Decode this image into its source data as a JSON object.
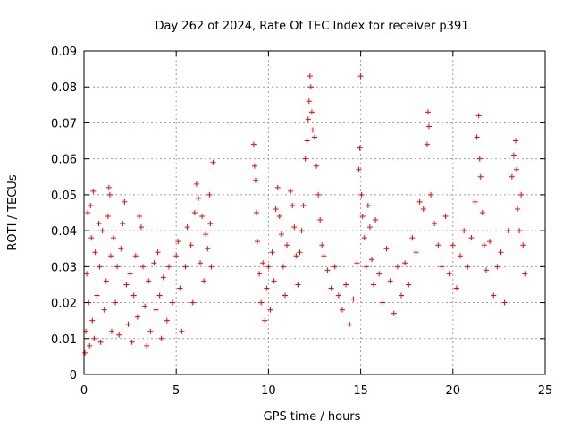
{
  "chart_data": {
    "type": "scatter",
    "title": "Day 262 of 2024, Rate Of TEC Index for receiver p391",
    "xlabel": "GPS time / hours",
    "ylabel": "ROTI / TECUs",
    "xlim": [
      0,
      25
    ],
    "ylim": [
      0,
      0.09
    ],
    "xticks": [
      0,
      5,
      10,
      15,
      20,
      25
    ],
    "xtick_labels": [
      "0",
      "5",
      "10",
      "15",
      "20",
      "25"
    ],
    "yticks": [
      0,
      0.01,
      0.02,
      0.03,
      0.04,
      0.05,
      0.06,
      0.07,
      0.08,
      0.09
    ],
    "ytick_labels": [
      "0",
      "0.01",
      "0.02",
      "0.03",
      "0.04",
      "0.05",
      "0.06",
      "0.07",
      "0.08",
      "0.09"
    ],
    "grid": true,
    "marker": "+",
    "color": "#ff0000",
    "series": [
      {
        "name": "ROTI",
        "points": [
          [
            0.05,
            0.006
          ],
          [
            0.1,
            0.012
          ],
          [
            0.15,
            0.028
          ],
          [
            0.2,
            0.045
          ],
          [
            0.25,
            0.02
          ],
          [
            0.3,
            0.008
          ],
          [
            0.35,
            0.047
          ],
          [
            0.4,
            0.038
          ],
          [
            0.45,
            0.015
          ],
          [
            0.5,
            0.051
          ],
          [
            0.55,
            0.01
          ],
          [
            0.6,
            0.034
          ],
          [
            0.7,
            0.022
          ],
          [
            0.8,
            0.042
          ],
          [
            0.85,
            0.03
          ],
          [
            0.9,
            0.009
          ],
          [
            1.0,
            0.04
          ],
          [
            1.1,
            0.018
          ],
          [
            1.2,
            0.026
          ],
          [
            1.3,
            0.044
          ],
          [
            1.35,
            0.052
          ],
          [
            1.4,
            0.05
          ],
          [
            1.45,
            0.033
          ],
          [
            1.5,
            0.012
          ],
          [
            1.6,
            0.038
          ],
          [
            1.7,
            0.02
          ],
          [
            1.8,
            0.03
          ],
          [
            1.9,
            0.011
          ],
          [
            2.0,
            0.035
          ],
          [
            2.1,
            0.042
          ],
          [
            2.2,
            0.048
          ],
          [
            2.3,
            0.025
          ],
          [
            2.4,
            0.014
          ],
          [
            2.5,
            0.028
          ],
          [
            2.6,
            0.009
          ],
          [
            2.7,
            0.022
          ],
          [
            2.8,
            0.033
          ],
          [
            2.9,
            0.016
          ],
          [
            3.0,
            0.044
          ],
          [
            3.1,
            0.041
          ],
          [
            3.2,
            0.03
          ],
          [
            3.3,
            0.019
          ],
          [
            3.4,
            0.008
          ],
          [
            3.5,
            0.026
          ],
          [
            3.6,
            0.012
          ],
          [
            3.8,
            0.031
          ],
          [
            3.9,
            0.018
          ],
          [
            4.0,
            0.034
          ],
          [
            4.1,
            0.022
          ],
          [
            4.2,
            0.01
          ],
          [
            4.3,
            0.027
          ],
          [
            4.5,
            0.015
          ],
          [
            4.6,
            0.03
          ],
          [
            4.8,
            0.02
          ],
          [
            5.0,
            0.033
          ],
          [
            5.1,
            0.037
          ],
          [
            5.2,
            0.024
          ],
          [
            5.3,
            0.012
          ],
          [
            5.5,
            0.03
          ],
          [
            5.6,
            0.041
          ],
          [
            5.8,
            0.036
          ],
          [
            5.9,
            0.02
          ],
          [
            6.0,
            0.045
          ],
          [
            6.1,
            0.053
          ],
          [
            6.2,
            0.049
          ],
          [
            6.3,
            0.031
          ],
          [
            6.4,
            0.044
          ],
          [
            6.5,
            0.026
          ],
          [
            6.6,
            0.039
          ],
          [
            6.7,
            0.035
          ],
          [
            6.8,
            0.05
          ],
          [
            6.85,
            0.042
          ],
          [
            6.9,
            0.03
          ],
          [
            7.0,
            0.059
          ],
          [
            9.2,
            0.064
          ],
          [
            9.25,
            0.058
          ],
          [
            9.3,
            0.054
          ],
          [
            9.35,
            0.045
          ],
          [
            9.4,
            0.037
          ],
          [
            9.5,
            0.028
          ],
          [
            9.6,
            0.02
          ],
          [
            9.7,
            0.031
          ],
          [
            9.8,
            0.015
          ],
          [
            9.9,
            0.024
          ],
          [
            10.0,
            0.03
          ],
          [
            10.1,
            0.018
          ],
          [
            10.2,
            0.034
          ],
          [
            10.3,
            0.026
          ],
          [
            10.4,
            0.046
          ],
          [
            10.5,
            0.052
          ],
          [
            10.6,
            0.044
          ],
          [
            10.7,
            0.039
          ],
          [
            10.8,
            0.03
          ],
          [
            10.9,
            0.022
          ],
          [
            11.0,
            0.036
          ],
          [
            11.2,
            0.051
          ],
          [
            11.3,
            0.047
          ],
          [
            11.4,
            0.041
          ],
          [
            11.5,
            0.033
          ],
          [
            11.6,
            0.025
          ],
          [
            11.7,
            0.034
          ],
          [
            11.8,
            0.04
          ],
          [
            11.9,
            0.047
          ],
          [
            12.0,
            0.06
          ],
          [
            12.1,
            0.065
          ],
          [
            12.15,
            0.071
          ],
          [
            12.2,
            0.076
          ],
          [
            12.25,
            0.083
          ],
          [
            12.3,
            0.08
          ],
          [
            12.35,
            0.073
          ],
          [
            12.4,
            0.068
          ],
          [
            12.5,
            0.066
          ],
          [
            12.6,
            0.058
          ],
          [
            12.7,
            0.05
          ],
          [
            12.8,
            0.043
          ],
          [
            12.9,
            0.036
          ],
          [
            13.0,
            0.033
          ],
          [
            13.2,
            0.029
          ],
          [
            13.4,
            0.024
          ],
          [
            13.6,
            0.03
          ],
          [
            13.8,
            0.022
          ],
          [
            14.0,
            0.018
          ],
          [
            14.2,
            0.025
          ],
          [
            14.4,
            0.014
          ],
          [
            14.6,
            0.021
          ],
          [
            14.8,
            0.031
          ],
          [
            14.9,
            0.057
          ],
          [
            14.95,
            0.063
          ],
          [
            15.0,
            0.083
          ],
          [
            15.05,
            0.05
          ],
          [
            15.1,
            0.044
          ],
          [
            15.2,
            0.038
          ],
          [
            15.3,
            0.03
          ],
          [
            15.4,
            0.047
          ],
          [
            15.5,
            0.041
          ],
          [
            15.6,
            0.032
          ],
          [
            15.7,
            0.025
          ],
          [
            15.8,
            0.043
          ],
          [
            16.0,
            0.028
          ],
          [
            16.2,
            0.02
          ],
          [
            16.4,
            0.035
          ],
          [
            16.6,
            0.026
          ],
          [
            16.8,
            0.017
          ],
          [
            17.0,
            0.03
          ],
          [
            17.2,
            0.022
          ],
          [
            17.4,
            0.031
          ],
          [
            17.6,
            0.025
          ],
          [
            17.8,
            0.038
          ],
          [
            18.0,
            0.034
          ],
          [
            18.2,
            0.048
          ],
          [
            18.4,
            0.046
          ],
          [
            18.6,
            0.064
          ],
          [
            18.65,
            0.073
          ],
          [
            18.7,
            0.069
          ],
          [
            18.8,
            0.05
          ],
          [
            19.0,
            0.042
          ],
          [
            19.2,
            0.036
          ],
          [
            19.4,
            0.03
          ],
          [
            19.6,
            0.044
          ],
          [
            19.8,
            0.028
          ],
          [
            20.0,
            0.036
          ],
          [
            20.2,
            0.024
          ],
          [
            20.4,
            0.033
          ],
          [
            20.6,
            0.04
          ],
          [
            20.8,
            0.03
          ],
          [
            21.0,
            0.038
          ],
          [
            21.2,
            0.048
          ],
          [
            21.3,
            0.066
          ],
          [
            21.4,
            0.072
          ],
          [
            21.45,
            0.06
          ],
          [
            21.5,
            0.055
          ],
          [
            21.6,
            0.045
          ],
          [
            21.7,
            0.036
          ],
          [
            21.8,
            0.029
          ],
          [
            22.0,
            0.037
          ],
          [
            22.2,
            0.022
          ],
          [
            22.4,
            0.03
          ],
          [
            22.6,
            0.034
          ],
          [
            22.8,
            0.02
          ],
          [
            23.0,
            0.04
          ],
          [
            23.2,
            0.055
          ],
          [
            23.3,
            0.061
          ],
          [
            23.4,
            0.065
          ],
          [
            23.45,
            0.057
          ],
          [
            23.5,
            0.046
          ],
          [
            23.6,
            0.04
          ],
          [
            23.7,
            0.05
          ],
          [
            23.8,
            0.036
          ],
          [
            23.9,
            0.028
          ]
        ]
      }
    ]
  }
}
